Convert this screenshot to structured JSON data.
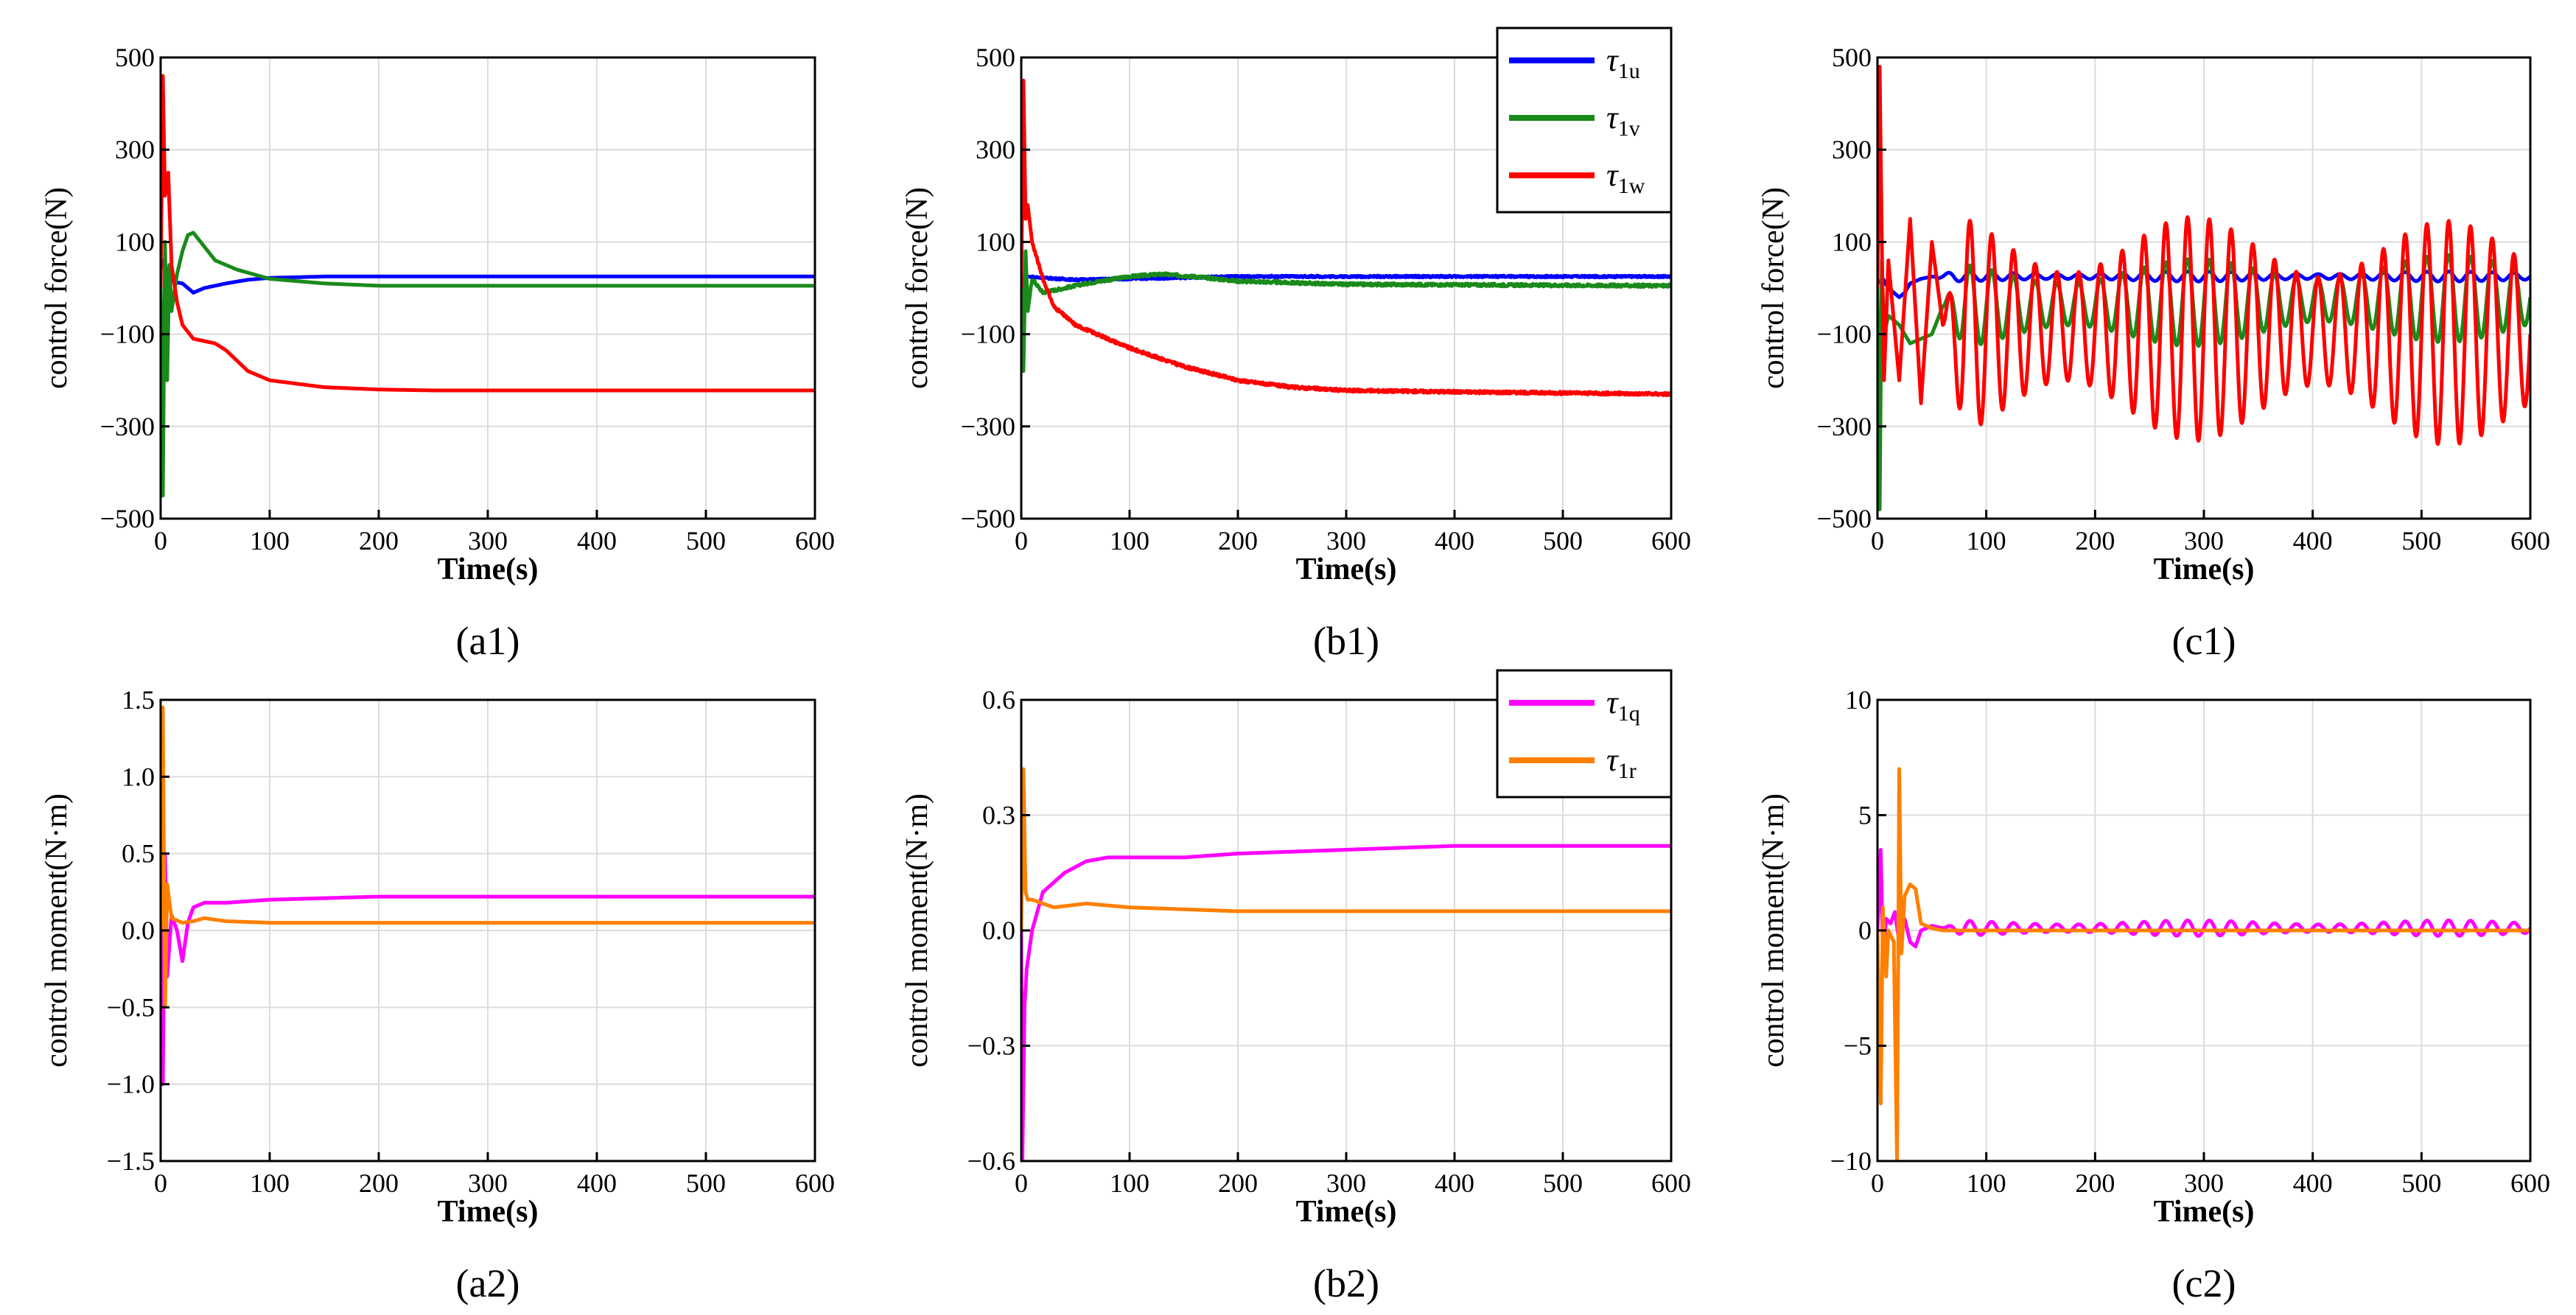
{
  "colors": {
    "u": "#0000ff",
    "v": "#1a8a1a",
    "w": "#ff0000",
    "q": "#ff00ff",
    "r": "#ff8000",
    "grid": "#dcdcdc",
    "axis": "#000000"
  },
  "chart_data": [
    {
      "id": "a1",
      "type": "line",
      "panel_label": "(a1)",
      "xlabel": "Time(s)",
      "ylabel": "control force(N)",
      "xlim": [
        0,
        600
      ],
      "ylim": [
        -500,
        500
      ],
      "xticks": [
        0,
        100,
        200,
        300,
        400,
        500,
        600
      ],
      "yticks": [
        -500,
        -300,
        -100,
        100,
        300,
        500
      ],
      "ytick_labels": [
        "−500",
        "−300",
        "−100",
        "100",
        "300",
        "500"
      ],
      "grid": true,
      "legend": null,
      "series": [
        {
          "name": "τ1u",
          "color_key": "u",
          "x": [
            0,
            3,
            6,
            10,
            15,
            20,
            25,
            30,
            40,
            60,
            80,
            100,
            150,
            200,
            600
          ],
          "values": [
            40,
            60,
            30,
            15,
            12,
            10,
            0,
            -10,
            0,
            10,
            18,
            22,
            25,
            25,
            25
          ]
        },
        {
          "name": "τ1v",
          "color_key": "v",
          "x": [
            0,
            2,
            4,
            6,
            8,
            10,
            15,
            20,
            25,
            30,
            40,
            50,
            70,
            100,
            150,
            200,
            600
          ],
          "values": [
            0,
            -450,
            100,
            -200,
            50,
            -50,
            30,
            80,
            115,
            120,
            90,
            60,
            40,
            20,
            10,
            5,
            5
          ]
        },
        {
          "name": "τ1w",
          "color_key": "w",
          "x": [
            0,
            2,
            4,
            7,
            10,
            15,
            20,
            30,
            40,
            50,
            60,
            80,
            100,
            150,
            200,
            250,
            300,
            600
          ],
          "values": [
            0,
            460,
            200,
            250,
            50,
            -30,
            -80,
            -110,
            -115,
            -120,
            -135,
            -180,
            -200,
            -215,
            -220,
            -222,
            -222,
            -222
          ]
        }
      ]
    },
    {
      "id": "b1",
      "type": "line",
      "panel_label": "(b1)",
      "xlabel": "Time(s)",
      "ylabel": "control force(N)",
      "xlim": [
        0,
        600
      ],
      "ylim": [
        -500,
        500
      ],
      "xticks": [
        0,
        100,
        200,
        300,
        400,
        500,
        600
      ],
      "yticks": [
        -500,
        -300,
        -100,
        100,
        300,
        500
      ],
      "ytick_labels": [
        "−500",
        "−300",
        "−100",
        "100",
        "300",
        "500"
      ],
      "grid": true,
      "legend": "top-right",
      "legend_entries": [
        {
          "label": "τ",
          "sub": "1u",
          "color_key": "u"
        },
        {
          "label": "τ",
          "sub": "1v",
          "color_key": "v"
        },
        {
          "label": "τ",
          "sub": "1w",
          "color_key": "w"
        }
      ],
      "series": [
        {
          "name": "τ1u",
          "color_key": "u",
          "x": [
            0,
            5,
            20,
            50,
            100,
            200,
            300,
            600
          ],
          "values": [
            20,
            25,
            22,
            18,
            20,
            25,
            25,
            25
          ],
          "noise": 4
        },
        {
          "name": "τ1v",
          "color_key": "v",
          "x": [
            0,
            2,
            4,
            6,
            10,
            20,
            40,
            60,
            100,
            130,
            160,
            200,
            300,
            600
          ],
          "values": [
            0,
            -180,
            80,
            -50,
            20,
            -10,
            0,
            10,
            25,
            30,
            25,
            15,
            8,
            5
          ],
          "noise": 6
        },
        {
          "name": "τ1w",
          "color_key": "w",
          "x": [
            0,
            2,
            4,
            6,
            10,
            20,
            30,
            50,
            80,
            100,
            150,
            200,
            250,
            300,
            400,
            600
          ],
          "values": [
            0,
            450,
            150,
            180,
            100,
            20,
            -40,
            -80,
            -110,
            -130,
            -170,
            -200,
            -215,
            -222,
            -225,
            -230
          ],
          "noise": 6
        }
      ]
    },
    {
      "id": "c1",
      "type": "line",
      "panel_label": "(c1)",
      "xlabel": "Time(s)",
      "ylabel": "control force(N)",
      "xlim": [
        0,
        600
      ],
      "ylim": [
        -500,
        500
      ],
      "xticks": [
        0,
        100,
        200,
        300,
        400,
        500,
        600
      ],
      "yticks": [
        -500,
        -300,
        -100,
        100,
        300,
        500
      ],
      "ytick_labels": [
        "−500",
        "−300",
        "−100",
        "100",
        "300",
        "500"
      ],
      "grid": true,
      "legend": null,
      "series": [
        {
          "name": "τ1u",
          "color_key": "u",
          "x": [
            0,
            5,
            10,
            15,
            20,
            25,
            30,
            40,
            50,
            600
          ],
          "values": [
            10,
            20,
            0,
            -10,
            -20,
            -10,
            10,
            20,
            25,
            25
          ],
          "osc_amp": 8,
          "osc_period": 20,
          "osc_start": 50
        },
        {
          "name": "τ1v",
          "color_key": "v",
          "x": [
            0,
            2,
            4,
            6,
            10,
            20,
            30,
            50,
            60,
            600
          ],
          "values": [
            0,
            -480,
            60,
            -100,
            -60,
            -80,
            -120,
            -100,
            -40,
            -20
          ],
          "osc_amp": 70,
          "osc_period": 20,
          "osc_start": 60
        },
        {
          "name": "τ1w",
          "color_key": "w",
          "x": [
            0,
            2,
            4,
            6,
            10,
            20,
            30,
            40,
            50,
            60,
            600
          ],
          "values": [
            0,
            480,
            100,
            -200,
            60,
            -200,
            150,
            -250,
            100,
            -80,
            -100
          ],
          "osc_amp": 180,
          "osc_period": 20,
          "osc_start": 60
        }
      ]
    },
    {
      "id": "a2",
      "type": "line",
      "panel_label": "(a2)",
      "xlabel": "Time(s)",
      "ylabel": "control moment(N·m)",
      "xlim": [
        0,
        600
      ],
      "ylim": [
        -1.5,
        1.5
      ],
      "xticks": [
        0,
        100,
        200,
        300,
        400,
        500,
        600
      ],
      "yticks": [
        -1.5,
        -1.0,
        -0.5,
        0.0,
        0.5,
        1.0,
        1.5
      ],
      "ytick_labels": [
        "−1.5",
        "−1.0",
        "−0.5",
        "0.0",
        "0.5",
        "1.0",
        "1.5"
      ],
      "grid": true,
      "legend": null,
      "series": [
        {
          "name": "τ1q",
          "color_key": "q",
          "x": [
            0,
            2,
            4,
            6,
            10,
            15,
            20,
            25,
            30,
            40,
            60,
            100,
            200,
            600
          ],
          "values": [
            0,
            -1.0,
            0.5,
            -0.3,
            0.1,
            0.0,
            -0.2,
            0.05,
            0.15,
            0.18,
            0.18,
            0.2,
            0.22,
            0.22
          ]
        },
        {
          "name": "τ1r",
          "color_key": "r",
          "x": [
            0,
            2,
            4,
            6,
            10,
            20,
            30,
            40,
            60,
            100,
            600
          ],
          "values": [
            0,
            1.45,
            -0.5,
            0.3,
            0.08,
            0.05,
            0.06,
            0.08,
            0.06,
            0.05,
            0.05
          ]
        }
      ]
    },
    {
      "id": "b2",
      "type": "line",
      "panel_label": "(b2)",
      "xlabel": "Time(s)",
      "ylabel": "control moment(N·m)",
      "xlim": [
        0,
        600
      ],
      "ylim": [
        -0.6,
        0.6
      ],
      "xticks": [
        0,
        100,
        200,
        300,
        400,
        500,
        600
      ],
      "yticks": [
        -0.6,
        -0.3,
        0.0,
        0.3,
        0.6
      ],
      "ytick_labels": [
        "−0.6",
        "−0.3",
        "0.0",
        "0.3",
        "0.6"
      ],
      "grid": true,
      "legend": "top-right",
      "legend_entries": [
        {
          "label": "τ",
          "sub": "1q",
          "color_key": "q"
        },
        {
          "label": "τ",
          "sub": "1r",
          "color_key": "r"
        }
      ],
      "series": [
        {
          "name": "τ1q",
          "color_key": "q",
          "x": [
            0,
            1,
            3,
            5,
            10,
            20,
            40,
            60,
            80,
            100,
            150,
            200,
            300,
            400,
            600
          ],
          "values": [
            0,
            -0.6,
            -0.2,
            -0.1,
            0.0,
            0.1,
            0.15,
            0.18,
            0.19,
            0.19,
            0.19,
            0.2,
            0.21,
            0.22,
            0.22
          ]
        },
        {
          "name": "τ1r",
          "color_key": "r",
          "x": [
            0,
            2,
            4,
            6,
            10,
            20,
            30,
            60,
            100,
            200,
            600
          ],
          "values": [
            0,
            0.42,
            0.1,
            0.08,
            0.08,
            0.07,
            0.06,
            0.07,
            0.06,
            0.05,
            0.05
          ]
        }
      ]
    },
    {
      "id": "c2",
      "type": "line",
      "panel_label": "(c2)",
      "xlabel": "Time(s)",
      "ylabel": "control moment(N·m)",
      "xlim": [
        0,
        600
      ],
      "ylim": [
        -10,
        10
      ],
      "xticks": [
        0,
        100,
        200,
        300,
        400,
        500,
        600
      ],
      "yticks": [
        -10,
        -5,
        0,
        5,
        10
      ],
      "ytick_labels": [
        "−10",
        "−5",
        "0",
        "5",
        "10"
      ],
      "grid": true,
      "legend": null,
      "series": [
        {
          "name": "τ1q",
          "color_key": "q",
          "x": [
            0,
            3,
            5,
            8,
            12,
            16,
            20,
            25,
            30,
            35,
            40,
            50,
            60,
            600
          ],
          "values": [
            0,
            3.5,
            -1,
            0.5,
            0.3,
            0.8,
            -0.5,
            0.5,
            -0.5,
            -0.7,
            0.0,
            0.2,
            0.1,
            0.1
          ],
          "osc_amp": 0.25,
          "osc_period": 20,
          "osc_start": 60
        },
        {
          "name": "τ1r",
          "color_key": "r",
          "x": [
            0,
            3,
            5,
            8,
            10,
            15,
            18,
            20,
            22,
            25,
            30,
            35,
            40,
            50,
            60,
            600
          ],
          "values": [
            0,
            -7.5,
            1,
            -2,
            0,
            -0.5,
            -10,
            7,
            -1,
            1.5,
            2,
            1.8,
            0.3,
            0.1,
            0.0,
            0.0
          ]
        }
      ]
    }
  ]
}
